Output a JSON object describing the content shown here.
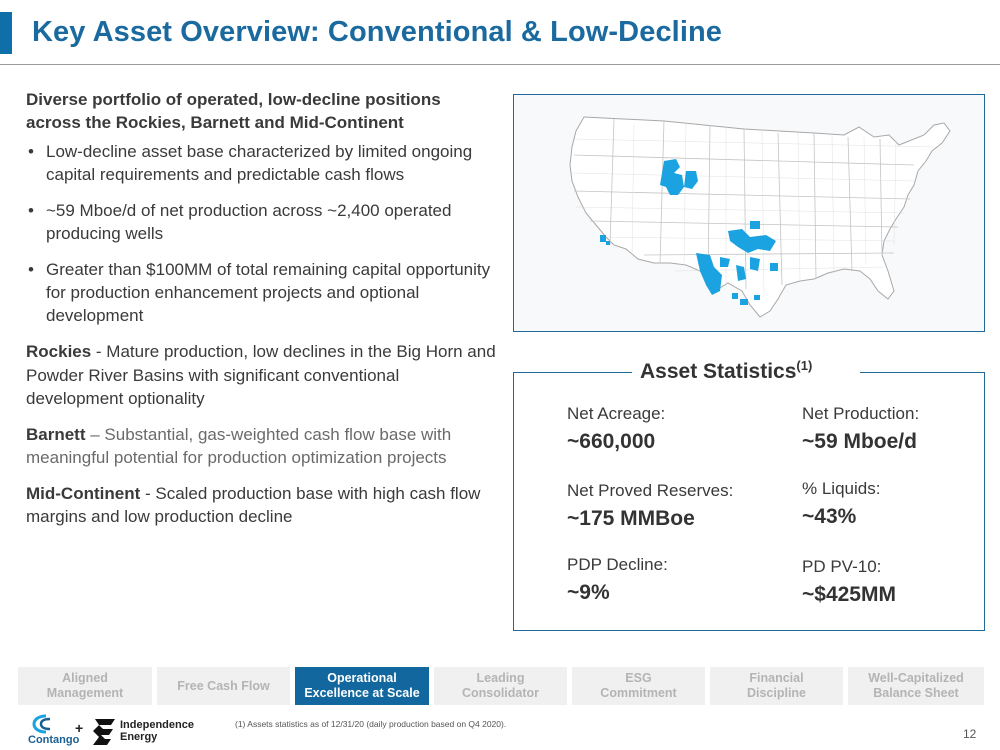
{
  "header": {
    "title": "Key Asset Overview: Conventional & Low-Decline"
  },
  "left": {
    "lead": "Diverse portfolio of operated, low-decline positions across the Rockies, Barnett and Mid-Continent",
    "bullets": [
      "Low-decline asset base characterized by limited ongoing capital requirements and predictable cash flows",
      "~59 Mboe/d of net production across ~2,400 operated producing wells",
      "Greater than $100MM of total remaining capital opportunity for production enhancement projects and optional development"
    ],
    "regions": [
      {
        "name": "Rockies",
        "text": " - Mature production, low declines in the Big Horn and Powder River Basins with significant conventional development optionality"
      },
      {
        "name": "Barnett",
        "text": " – Substantial, gas-weighted cash flow base with meaningful potential for production optimization projects"
      },
      {
        "name": "Mid-Continent",
        "text": " - Scaled production base with high cash flow margins and low production decline"
      }
    ]
  },
  "stats": {
    "title": "Asset Statistics",
    "title_sup": "(1)",
    "items": [
      {
        "label": "Net Acreage:",
        "value": "~660,000"
      },
      {
        "label": "Net Production:",
        "value": "~59 Mboe/d"
      },
      {
        "label": "Net Proved Reserves:",
        "value": "~175 MMBoe"
      },
      {
        "label": "% Liquids:",
        "value": "~43%"
      },
      {
        "label": "PDP Decline:",
        "value": "~9%"
      },
      {
        "label": "PD PV-10:",
        "value": "~$425MM"
      }
    ]
  },
  "map": {
    "land_color": "#ffffff",
    "border_color": "#a8a8a8",
    "asset_color": "#1aa3e0"
  },
  "tabs": [
    {
      "label1": "Aligned",
      "label2": "Management",
      "active": false
    },
    {
      "label1": "Free Cash Flow",
      "label2": "",
      "active": false
    },
    {
      "label1": "Operational",
      "label2": "Excellence at Scale",
      "active": true
    },
    {
      "label1": "Leading",
      "label2": "Consolidator",
      "active": false
    },
    {
      "label1": "ESG",
      "label2": "Commitment",
      "active": false
    },
    {
      "label1": "Financial",
      "label2": "Discipline",
      "active": false
    },
    {
      "label1": "Well-Capitalized",
      "label2": "Balance Sheet",
      "active": false
    }
  ],
  "footer": {
    "footnote": "(1) Assets statistics as of 12/31/20 (daily production based on Q4 2020).",
    "page_number": "12",
    "logo_left": "Contango",
    "logo_plus": "+",
    "logo_right_line1": "Independence",
    "logo_right_line2": "Energy"
  }
}
